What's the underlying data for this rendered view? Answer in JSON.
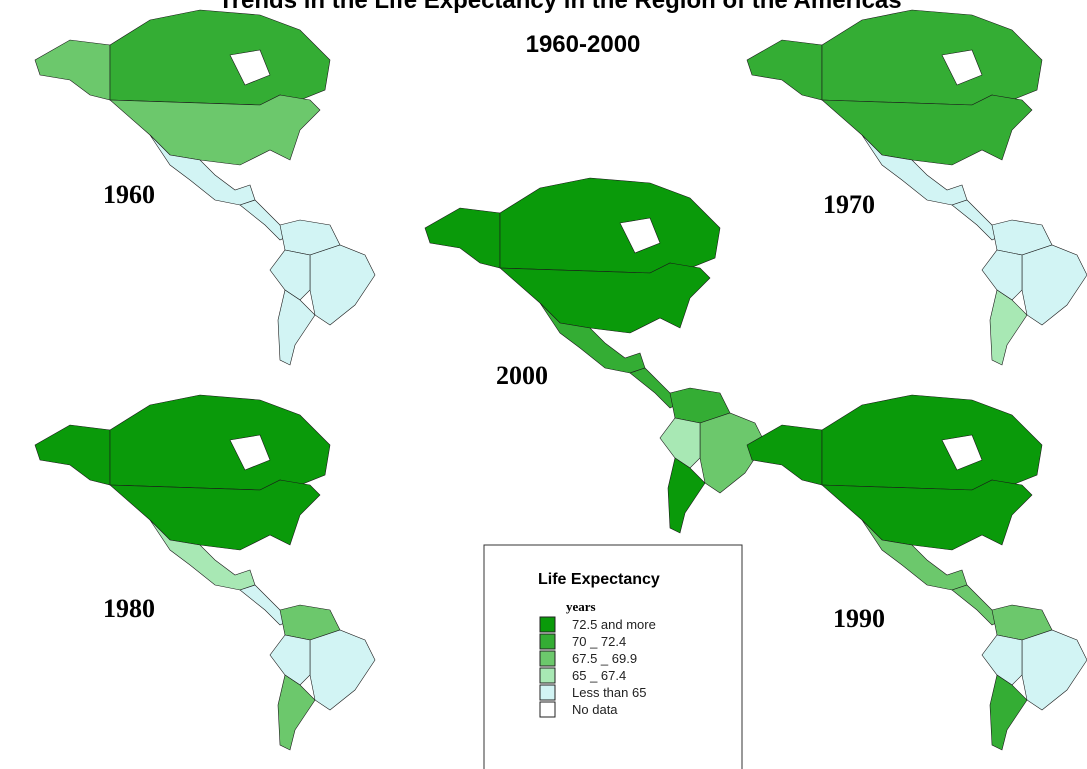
{
  "title": "Trends in the Life Expectancy in the Region of the Americas",
  "subtitle": "1960-2000",
  "maps": [
    {
      "label": "1960"
    },
    {
      "label": "1970"
    },
    {
      "label": "2000"
    },
    {
      "label": "1980"
    },
    {
      "label": "1990"
    }
  ],
  "legend": {
    "title": "Life Expectancy",
    "unit": "years",
    "items": [
      {
        "label": "72.5 and more",
        "color": "#0a9a0a"
      },
      {
        "label": "70 _ 72.4",
        "color": "#34ad34"
      },
      {
        "label": "67.5 _ 69.9",
        "color": "#6cc86c"
      },
      {
        "label": "65 _ 67.4",
        "color": "#a8e8b4"
      },
      {
        "label": "Less than 65",
        "color": "#d2f4f4"
      },
      {
        "label": "No data",
        "color": "#ffffff"
      }
    ]
  }
}
